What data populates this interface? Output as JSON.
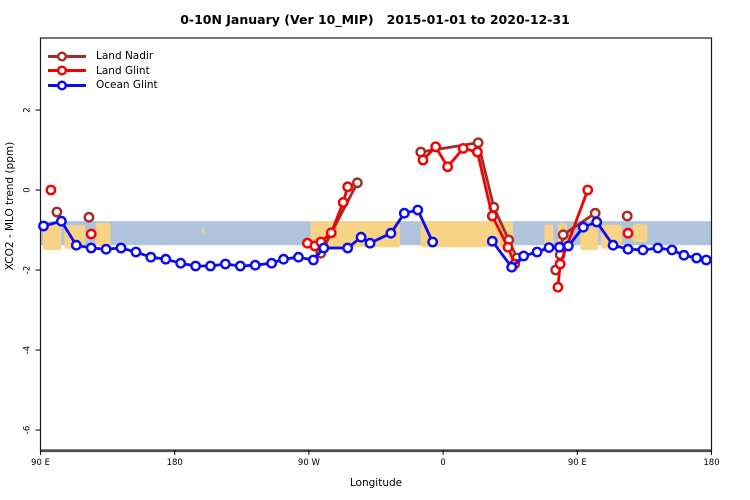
{
  "title": "0-10N January (Ver 10_MIP)   2015-01-01 to 2020-12-31",
  "axes": {
    "xlabel": "Longitude",
    "ylabel": "XCO2 - MLO trend (ppm)",
    "x_axis_wraps_deg": [
      90,
      540
    ],
    "x_ticks": [
      {
        "deg": 90,
        "label": "90 E"
      },
      {
        "deg": 180,
        "label": "180"
      },
      {
        "deg": 270,
        "label": "90 W"
      },
      {
        "deg": 360,
        "label": "0"
      },
      {
        "deg": 450,
        "label": "90 E"
      },
      {
        "deg": 540,
        "label": "180"
      }
    ],
    "y_ticks": [
      2,
      0,
      -2,
      -4,
      -6
    ],
    "y_range": [
      -6.5,
      3.8
    ],
    "grid": "off"
  },
  "map_strip": {
    "ocean_band_color": "#b0c3dd",
    "land_color": "#f9d385",
    "band_top_ppm": -0.78,
    "band_bottom_ppm": -1.38,
    "land_patches": [
      {
        "from_deg": 91.5,
        "to_deg": 104,
        "top_ppm": -0.82,
        "bot_ppm": -1.5
      },
      {
        "from_deg": 106,
        "to_deg": 120,
        "top_ppm": -0.88,
        "bot_ppm": -1.47
      },
      {
        "from_deg": 127,
        "to_deg": 137,
        "top_ppm": -0.82,
        "bot_ppm": -1.4
      },
      {
        "from_deg": 198.5,
        "to_deg": 200,
        "top_ppm": -0.95,
        "bot_ppm": -1.08
      },
      {
        "from_deg": 271,
        "to_deg": 331,
        "top_ppm": -0.78,
        "bot_ppm": -1.43
      },
      {
        "from_deg": 345,
        "to_deg": 407,
        "top_ppm": -0.78,
        "bot_ppm": -1.43
      },
      {
        "from_deg": 428,
        "to_deg": 434,
        "top_ppm": -0.86,
        "bot_ppm": -1.42
      },
      {
        "from_deg": 437,
        "to_deg": 443,
        "top_ppm": -0.83,
        "bot_ppm": -1.46
      },
      {
        "from_deg": 452,
        "to_deg": 464,
        "top_ppm": -0.82,
        "bot_ppm": -1.5
      },
      {
        "from_deg": 466,
        "to_deg": 480,
        "top_ppm": -0.87,
        "bot_ppm": -1.47
      },
      {
        "from_deg": 487,
        "to_deg": 497,
        "top_ppm": -0.86,
        "bot_ppm": -1.3
      }
    ]
  },
  "legend": {
    "items": [
      "Land Nadir",
      "Land Glint",
      "Ocean Glint"
    ]
  },
  "chart_data": {
    "type": "line",
    "title": "0-10N January (Ver 10_MIP)   2015-01-01 to 2020-12-31",
    "xlabel": "Longitude",
    "ylabel": "XCO2 - MLO trend (ppm)",
    "x_units": "degrees along axis, 90E wrapping east to 180 (270=90W, 360=0, 450=90E)",
    "series": [
      {
        "name": "Land Nadir",
        "color": "#a52a2a",
        "segments": [
          [
            [
              101,
              -0.55
            ]
          ],
          [
            [
              122.5,
              -0.68
            ]
          ],
          [
            [
              278,
              -1.58
            ],
            [
              302.5,
              0.18
            ]
          ],
          [
            [
              345,
              0.95
            ],
            [
              383.5,
              1.18
            ],
            [
              394,
              -0.43
            ],
            [
              404,
              -1.25
            ],
            [
              409.5,
              -1.7
            ]
          ],
          [
            [
              435.5,
              -2.0
            ],
            [
              438.5,
              -1.62
            ],
            [
              440.5,
              -1.12
            ],
            [
              462,
              -0.58
            ]
          ],
          [
            [
              483.5,
              -0.65
            ]
          ]
        ]
      },
      {
        "name": "Land Glint",
        "color": "#f50000",
        "segments": [
          [
            [
              97,
              0.0
            ]
          ],
          [
            [
              124,
              -1.1
            ]
          ],
          [
            [
              269,
              -1.33
            ],
            [
              274,
              -1.4
            ],
            [
              278,
              -1.3
            ],
            [
              285,
              -1.07
            ],
            [
              293,
              -0.31
            ],
            [
              296,
              0.08
            ]
          ],
          [
            [
              346.5,
              0.75
            ],
            [
              355,
              1.08
            ],
            [
              363,
              0.58
            ],
            [
              373.5,
              1.04
            ],
            [
              383,
              0.95
            ],
            [
              393,
              -0.65
            ],
            [
              403.5,
              -1.43
            ],
            [
              408,
              -1.85
            ]
          ],
          [
            [
              437,
              -2.43
            ],
            [
              438.5,
              -1.85
            ],
            [
              457,
              0.0
            ]
          ],
          [
            [
              484,
              -1.08
            ]
          ]
        ]
      },
      {
        "name": "Ocean Glint",
        "color": "#0b0bee",
        "segments": [
          [
            [
              92,
              -0.9
            ],
            [
              104,
              -0.78
            ],
            [
              114,
              -1.38
            ],
            [
              124,
              -1.45
            ],
            [
              134,
              -1.48
            ],
            [
              144,
              -1.45
            ],
            [
              154,
              -1.55
            ],
            [
              164,
              -1.68
            ],
            [
              174,
              -1.73
            ],
            [
              184,
              -1.83
            ],
            [
              194,
              -1.9
            ],
            [
              204,
              -1.9
            ],
            [
              214,
              -1.85
            ],
            [
              224,
              -1.9
            ],
            [
              234,
              -1.88
            ],
            [
              245,
              -1.83
            ],
            [
              253,
              -1.73
            ],
            [
              263,
              -1.68
            ],
            [
              273,
              -1.75
            ],
            [
              280,
              -1.45
            ],
            [
              296,
              -1.45
            ],
            [
              305,
              -1.18
            ],
            [
              311,
              -1.33
            ],
            [
              325,
              -1.08
            ],
            [
              334,
              -0.58
            ],
            [
              343,
              -0.5
            ],
            [
              353,
              -1.3
            ]
          ],
          [
            [
              393,
              -1.28
            ],
            [
              406,
              -1.93
            ],
            [
              414,
              -1.65
            ],
            [
              423,
              -1.55
            ],
            [
              431,
              -1.44
            ],
            [
              438,
              -1.43
            ],
            [
              444,
              -1.4
            ],
            [
              454,
              -0.93
            ],
            [
              463,
              -0.8
            ],
            [
              474,
              -1.38
            ],
            [
              484,
              -1.48
            ],
            [
              494,
              -1.5
            ],
            [
              504,
              -1.45
            ],
            [
              513.5,
              -1.5
            ],
            [
              521.5,
              -1.63
            ],
            [
              530,
              -1.7
            ],
            [
              536.5,
              -1.75
            ]
          ]
        ]
      }
    ]
  }
}
